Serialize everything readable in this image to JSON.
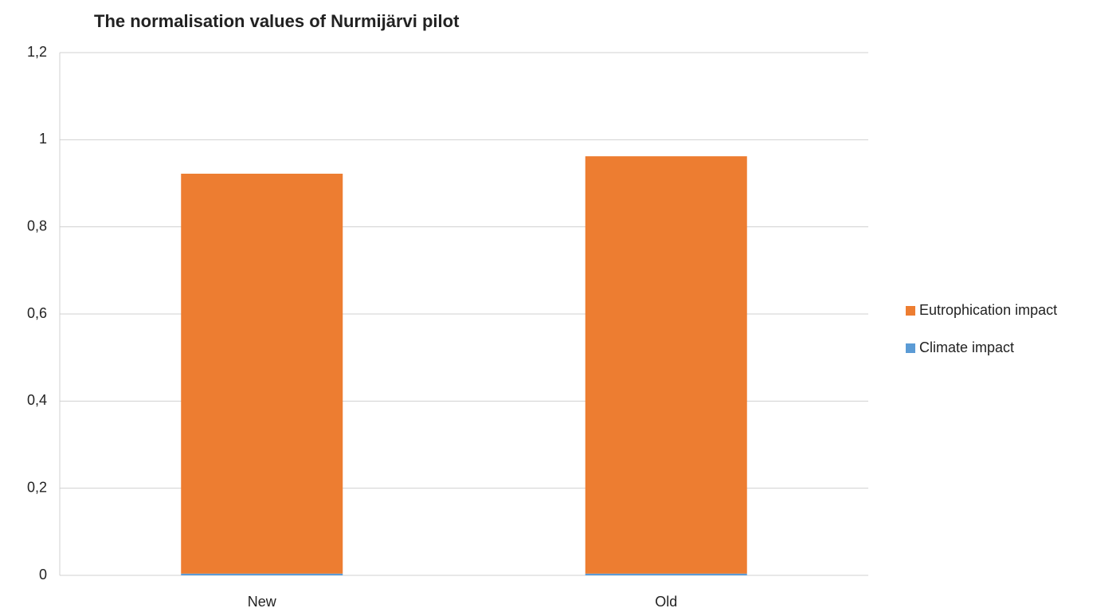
{
  "chart_data": {
    "type": "stacked_bar",
    "title": "The normalisation values of Nurmijärvi pilot",
    "categories": [
      "New",
      "Old"
    ],
    "series": [
      {
        "name": "Climate impact",
        "color": "#5b9bd5",
        "values": [
          0.004,
          0.004
        ]
      },
      {
        "name": "Eutrophication impact",
        "color": "#ed7d31",
        "values": [
          0.918,
          0.958
        ]
      }
    ],
    "ylim": [
      0,
      1.2
    ],
    "yticks": [
      0,
      {
        "value": 0.2,
        "label": "0,2"
      },
      {
        "value": 0.4,
        "label": "0,4"
      },
      {
        "value": 0.6,
        "label": "0,6"
      },
      {
        "value": 0.8,
        "label": "0,8"
      },
      1,
      {
        "value": 1.2,
        "label": "1,2"
      }
    ],
    "grid": true,
    "legend": "right"
  }
}
